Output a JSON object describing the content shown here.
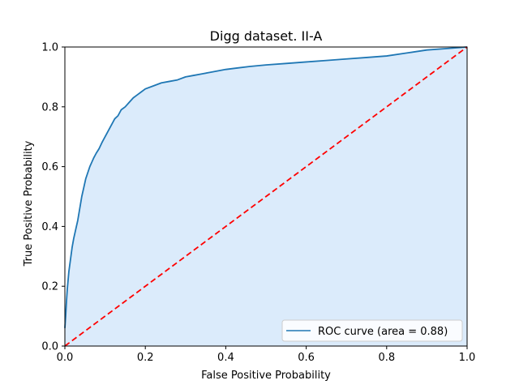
{
  "chart_data": {
    "type": "line",
    "title": "Digg dataset. II-A",
    "xlabel": "False Positive Probability",
    "ylabel": "True Positive Probability",
    "xlim": [
      0.0,
      1.0
    ],
    "ylim": [
      0.0,
      1.0
    ],
    "xticks": [
      "0.0",
      "0.2",
      "0.4",
      "0.6",
      "0.8",
      "1.0"
    ],
    "yticks": [
      "0.0",
      "0.2",
      "0.4",
      "0.6",
      "0.8",
      "1.0"
    ],
    "grid": false,
    "legend_position": "lower-right",
    "series": [
      {
        "name": "ROC curve (area = 0.88)",
        "style": "solid",
        "color": "#1f77b4",
        "fill_below": true,
        "fill_color": "#dbebfb",
        "x": [
          0.0,
          0.002,
          0.004,
          0.006,
          0.008,
          0.01,
          0.014,
          0.018,
          0.022,
          0.027,
          0.032,
          0.037,
          0.042,
          0.047,
          0.052,
          0.057,
          0.062,
          0.067,
          0.072,
          0.078,
          0.085,
          0.092,
          0.1,
          0.108,
          0.116,
          0.124,
          0.132,
          0.14,
          0.15,
          0.16,
          0.17,
          0.18,
          0.19,
          0.2,
          0.22,
          0.24,
          0.26,
          0.28,
          0.3,
          0.32,
          0.34,
          0.36,
          0.38,
          0.4,
          0.43,
          0.46,
          0.5,
          0.55,
          0.6,
          0.65,
          0.7,
          0.75,
          0.8,
          0.85,
          0.9,
          0.95,
          1.0
        ],
        "y": [
          0.06,
          0.1,
          0.15,
          0.19,
          0.22,
          0.25,
          0.29,
          0.33,
          0.36,
          0.39,
          0.42,
          0.46,
          0.5,
          0.53,
          0.56,
          0.58,
          0.6,
          0.615,
          0.63,
          0.645,
          0.66,
          0.68,
          0.7,
          0.72,
          0.74,
          0.76,
          0.77,
          0.79,
          0.8,
          0.815,
          0.83,
          0.84,
          0.85,
          0.86,
          0.87,
          0.88,
          0.885,
          0.89,
          0.9,
          0.905,
          0.91,
          0.915,
          0.92,
          0.925,
          0.93,
          0.935,
          0.94,
          0.945,
          0.95,
          0.955,
          0.96,
          0.965,
          0.97,
          0.98,
          0.99,
          0.995,
          1.0
        ]
      },
      {
        "name": "",
        "style": "dashed",
        "color": "#ff0000",
        "x": [
          0.0,
          1.0
        ],
        "y": [
          0.0,
          1.0
        ]
      }
    ]
  }
}
